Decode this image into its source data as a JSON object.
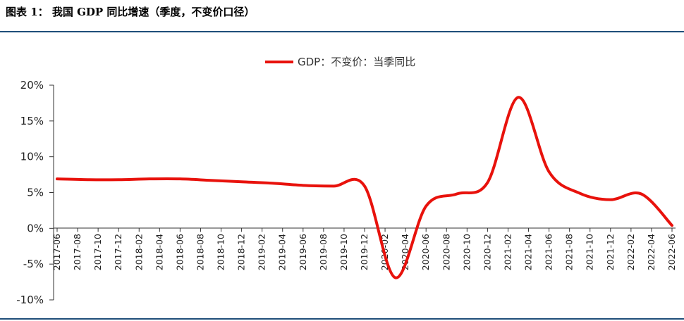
{
  "header": {
    "title": "图表 1：   我国 GDP 同比增速（季度，不变价口径）"
  },
  "chart_data": {
    "type": "line",
    "title": "",
    "xlabel": "",
    "ylabel": "",
    "categories": [
      "2017-06",
      "2017-08",
      "2017-10",
      "2017-12",
      "2018-02",
      "2018-04",
      "2018-06",
      "2018-08",
      "2018-10",
      "2018-12",
      "2019-02",
      "2019-04",
      "2019-06",
      "2019-08",
      "2019-10",
      "2019-12",
      "2020-02",
      "2020-04",
      "2020-06",
      "2020-08",
      "2020-10",
      "2020-12",
      "2021-02",
      "2021-04",
      "2021-06",
      "2021-08",
      "2021-10",
      "2021-12",
      "2022-02",
      "2022-04",
      "2022-06"
    ],
    "x": [
      "2017-06",
      "2017-09",
      "2017-12",
      "2018-03",
      "2018-06",
      "2018-09",
      "2018-12",
      "2019-03",
      "2019-06",
      "2019-09",
      "2019-12",
      "2020-03",
      "2020-06",
      "2020-09",
      "2020-12",
      "2021-03",
      "2021-06",
      "2021-09",
      "2021-12",
      "2022-03",
      "2022-06"
    ],
    "series": [
      {
        "name": "GDP：不变价：当季同比",
        "values": [
          6.9,
          6.8,
          6.8,
          6.9,
          6.9,
          6.7,
          6.5,
          6.3,
          6.0,
          5.9,
          5.9,
          -6.9,
          3.1,
          4.8,
          6.4,
          18.3,
          7.9,
          4.9,
          4.0,
          4.8,
          0.4
        ]
      }
    ],
    "yticks": [
      "20%",
      "15%",
      "10%",
      "5%",
      "0%",
      "-5%",
      "-10%"
    ],
    "ylim": [
      -10,
      20
    ],
    "grid": false,
    "legend": "top-center",
    "colors": {
      "line": "#e8120c",
      "axis": "#333333",
      "rule": "#1f4e79"
    }
  }
}
